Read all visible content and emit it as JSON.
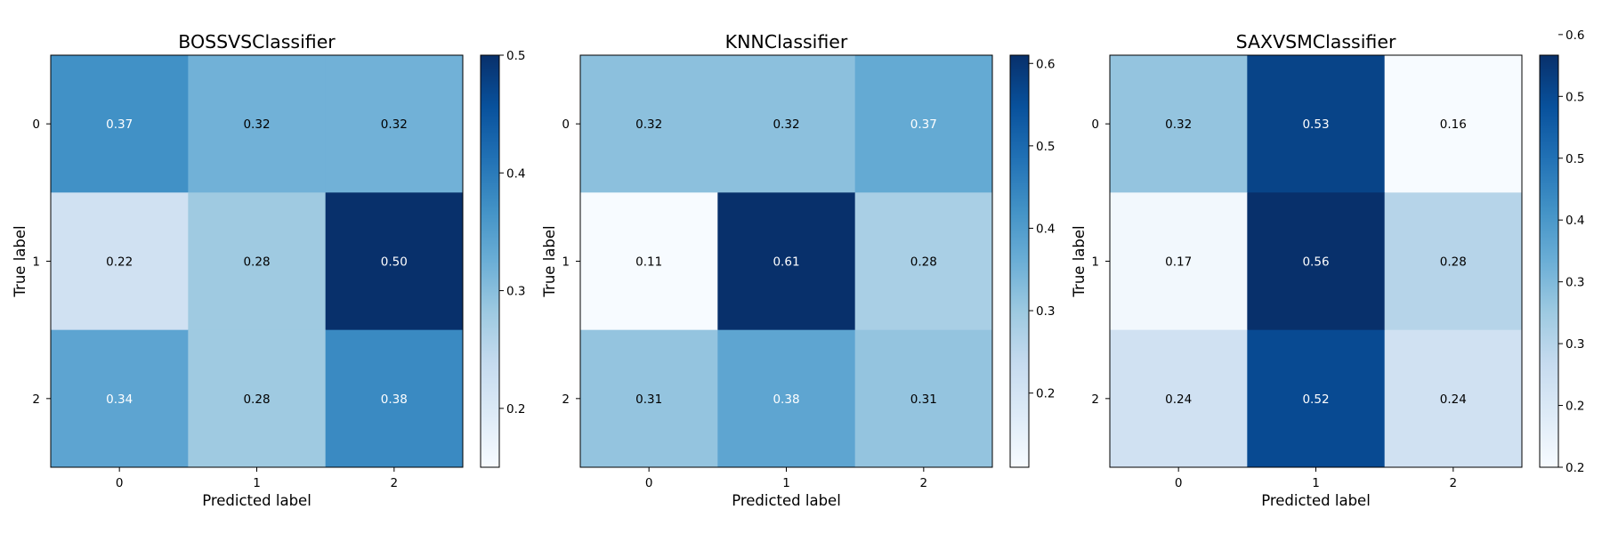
{
  "chart_data": [
    {
      "type": "heatmap",
      "title": "BOSSVSClassifier",
      "xlabel": "Predicted label",
      "ylabel": "True label",
      "x_ticks": [
        "0",
        "1",
        "2"
      ],
      "y_ticks": [
        "0",
        "1",
        "2"
      ],
      "values": [
        [
          0.37,
          0.32,
          0.32
        ],
        [
          0.22,
          0.28,
          0.5
        ],
        [
          0.34,
          0.28,
          0.38
        ]
      ],
      "labels": [
        [
          "0.37",
          "0.32",
          "0.32"
        ],
        [
          "0.22",
          "0.28",
          "0.50"
        ],
        [
          "0.34",
          "0.28",
          "0.38"
        ]
      ],
      "colormap": "Blues",
      "vmin": 0.15,
      "vmax": 0.5,
      "colorbar_ticks": [
        0.2,
        0.3,
        0.4,
        0.5
      ],
      "colorbar_tick_labels": [
        "0.2",
        "0.3",
        "0.4",
        "0.5"
      ]
    },
    {
      "type": "heatmap",
      "title": "KNNClassifier",
      "xlabel": "Predicted label",
      "ylabel": "True label",
      "x_ticks": [
        "0",
        "1",
        "2"
      ],
      "y_ticks": [
        "0",
        "1",
        "2"
      ],
      "values": [
        [
          0.32,
          0.32,
          0.37
        ],
        [
          0.11,
          0.61,
          0.28
        ],
        [
          0.31,
          0.38,
          0.31
        ]
      ],
      "labels": [
        [
          "0.32",
          "0.32",
          "0.37"
        ],
        [
          "0.11",
          "0.61",
          "0.28"
        ],
        [
          "0.31",
          "0.38",
          "0.31"
        ]
      ],
      "colormap": "Blues",
      "vmin": 0.11,
      "vmax": 0.61,
      "colorbar_ticks": [
        0.2,
        0.3,
        0.4,
        0.5,
        0.6
      ],
      "colorbar_tick_labels": [
        "0.2",
        "0.3",
        "0.4",
        "0.5",
        "0.6"
      ]
    },
    {
      "type": "heatmap",
      "title": "SAXVSMClassifier",
      "xlabel": "Predicted label",
      "ylabel": "True label",
      "x_ticks": [
        "0",
        "1",
        "2"
      ],
      "y_ticks": [
        "0",
        "1",
        "2"
      ],
      "values": [
        [
          0.32,
          0.53,
          0.16
        ],
        [
          0.17,
          0.56,
          0.28
        ],
        [
          0.24,
          0.52,
          0.24
        ]
      ],
      "labels": [
        [
          "0.32",
          "0.53",
          "0.16"
        ],
        [
          "0.17",
          "0.56",
          "0.28"
        ],
        [
          "0.24",
          "0.52",
          "0.24"
        ]
      ],
      "colormap": "Blues",
      "vmin": 0.16,
      "vmax": 0.56,
      "colorbar_ticks": [
        0.16,
        0.22,
        0.28,
        0.34,
        0.4,
        0.46,
        0.52,
        0.58
      ],
      "colorbar_tick_labels": [
        "0.2",
        "0.2",
        "0.3",
        "0.3",
        "0.4",
        "0.5",
        "0.5",
        "0.6"
      ]
    }
  ]
}
